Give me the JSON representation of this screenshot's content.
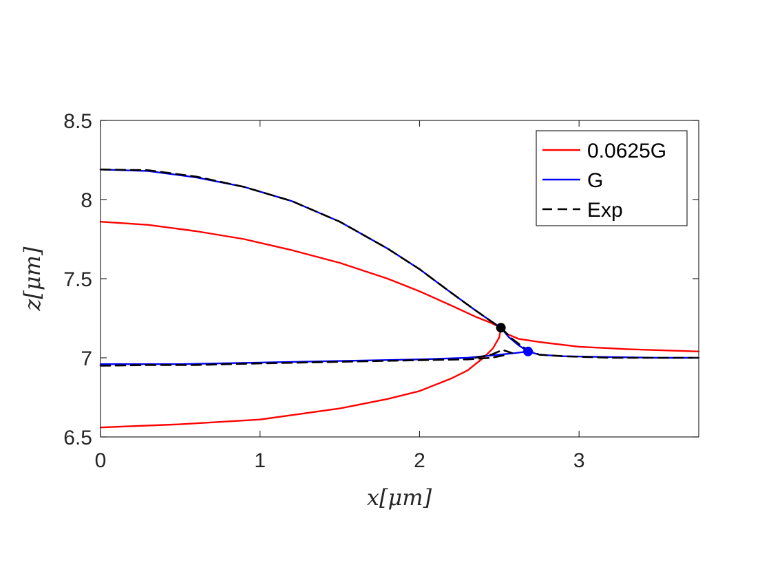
{
  "chart_data": {
    "type": "line",
    "title": "",
    "xlabel": "x[μm]",
    "ylabel": "z[μm]",
    "xlim": [
      0,
      3.75
    ],
    "ylim": [
      6.5,
      8.5
    ],
    "xticks": [
      0,
      1,
      2,
      3
    ],
    "yticks": [
      6.5,
      7,
      7.5,
      8,
      8.5
    ],
    "xtick_labels": [
      "0",
      "1",
      "2",
      "3"
    ],
    "ytick_labels": [
      "6.5",
      "7",
      "7.5",
      "8",
      "8.5"
    ],
    "grid": false,
    "legend_position": "top-right",
    "series": [
      {
        "name": "0.0625G",
        "color": "#ff0000",
        "style": "solid",
        "segments": [
          [
            [
              0,
              7.86
            ],
            [
              0.3,
              7.84
            ],
            [
              0.6,
              7.8
            ],
            [
              0.9,
              7.75
            ],
            [
              1.2,
              7.68
            ],
            [
              1.5,
              7.6
            ],
            [
              1.8,
              7.5
            ],
            [
              2.0,
              7.42
            ],
            [
              2.2,
              7.33
            ],
            [
              2.35,
              7.26
            ],
            [
              2.45,
              7.22
            ],
            [
              2.51,
              7.19
            ]
          ],
          [
            [
              0,
              6.56
            ],
            [
              0.5,
              6.58
            ],
            [
              1.0,
              6.61
            ],
            [
              1.5,
              6.68
            ],
            [
              1.8,
              6.74
            ],
            [
              2.0,
              6.79
            ],
            [
              2.2,
              6.87
            ],
            [
              2.3,
              6.92
            ],
            [
              2.4,
              7.0
            ],
            [
              2.46,
              7.06
            ],
            [
              2.5,
              7.13
            ],
            [
              2.51,
              7.19
            ]
          ],
          [
            [
              2.51,
              7.19
            ],
            [
              2.55,
              7.15
            ],
            [
              2.62,
              7.12
            ],
            [
              2.75,
              7.1
            ],
            [
              3.0,
              7.07
            ],
            [
              3.3,
              7.055
            ],
            [
              3.6,
              7.045
            ],
            [
              3.75,
              7.04
            ]
          ]
        ]
      },
      {
        "name": "G",
        "color": "#0000ff",
        "style": "solid",
        "segments": [
          [
            [
              0,
              8.19
            ],
            [
              0.3,
              8.18
            ],
            [
              0.6,
              8.14
            ],
            [
              0.9,
              8.08
            ],
            [
              1.2,
              7.99
            ],
            [
              1.5,
              7.86
            ],
            [
              1.8,
              7.69
            ],
            [
              2.0,
              7.56
            ],
            [
              2.2,
              7.41
            ],
            [
              2.35,
              7.3
            ],
            [
              2.45,
              7.23
            ],
            [
              2.51,
              7.19
            ]
          ],
          [
            [
              2.51,
              7.19
            ],
            [
              2.56,
              7.13
            ],
            [
              2.62,
              7.08
            ],
            [
              2.68,
              7.04
            ]
          ],
          [
            [
              0,
              6.96
            ],
            [
              0.5,
              6.96
            ],
            [
              1.0,
              6.97
            ],
            [
              1.5,
              6.98
            ],
            [
              2.0,
              6.99
            ],
            [
              2.3,
              7.0
            ],
            [
              2.5,
              7.02
            ],
            [
              2.6,
              7.03
            ],
            [
              2.68,
              7.04
            ]
          ],
          [
            [
              2.68,
              7.04
            ],
            [
              2.75,
              7.02
            ],
            [
              2.9,
              7.01
            ],
            [
              3.2,
              7.005
            ],
            [
              3.5,
              7.0
            ],
            [
              3.75,
              7.0
            ]
          ]
        ]
      },
      {
        "name": "Exp",
        "color": "#000000",
        "style": "dashed",
        "segments": [
          [
            [
              0,
              8.19
            ],
            [
              0.3,
              8.185
            ],
            [
              0.6,
              8.145
            ],
            [
              0.9,
              8.08
            ],
            [
              1.2,
              7.99
            ],
            [
              1.5,
              7.86
            ],
            [
              1.8,
              7.69
            ],
            [
              2.0,
              7.56
            ],
            [
              2.2,
              7.41
            ],
            [
              2.35,
              7.3
            ],
            [
              2.45,
              7.23
            ],
            [
              2.51,
              7.19
            ]
          ],
          [
            [
              0,
              6.95
            ],
            [
              0.3,
              6.955
            ],
            [
              0.6,
              6.955
            ],
            [
              1.0,
              6.965
            ],
            [
              1.5,
              6.975
            ],
            [
              2.0,
              6.985
            ],
            [
              2.3,
              6.99
            ],
            [
              2.45,
              7.0
            ],
            [
              2.55,
              7.02
            ]
          ],
          [
            [
              2.51,
              7.19
            ],
            [
              2.58,
              7.12
            ],
            [
              2.66,
              7.06
            ],
            [
              2.75,
              7.02
            ],
            [
              2.9,
              7.01
            ],
            [
              3.2,
              7.0
            ],
            [
              3.5,
              7.0
            ],
            [
              3.75,
              7.0
            ]
          ],
          [
            [
              2.35,
              7.0
            ],
            [
              2.45,
              7.02
            ],
            [
              2.52,
              7.05
            ],
            [
              2.58,
              7.03
            ]
          ]
        ]
      }
    ],
    "markers": [
      {
        "x": 2.51,
        "y": 7.19,
        "color": "#000000"
      },
      {
        "x": 2.68,
        "y": 7.04,
        "color": "#0000ff"
      }
    ]
  }
}
